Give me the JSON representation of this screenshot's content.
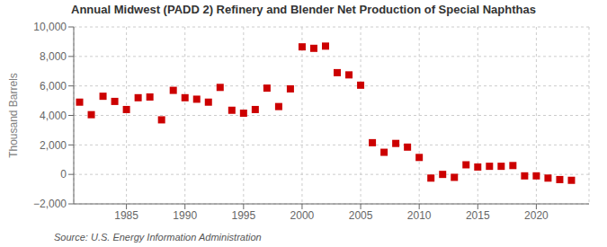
{
  "chart_data": {
    "type": "scatter",
    "title": "Annual Midwest (PADD 2) Refinery and Blender Net Production of Special Naphthas",
    "y_label": "Thousand Barrels",
    "annotations": [
      "Source: U.S. Energy Information Administration"
    ],
    "color": "#cc0000",
    "marker": "square",
    "grid": true,
    "x": [
      1981,
      1982,
      1983,
      1984,
      1985,
      1986,
      1987,
      1988,
      1989,
      1990,
      1991,
      1992,
      1993,
      1994,
      1995,
      1996,
      1997,
      1998,
      1999,
      2000,
      2001,
      2002,
      2003,
      2004,
      2005,
      2006,
      2007,
      2008,
      2009,
      2010,
      2011,
      2012,
      2013,
      2014,
      2015,
      2016,
      2017,
      2018,
      2019,
      2020,
      2021,
      2022,
      2023
    ],
    "values": [
      4900,
      4050,
      5300,
      4950,
      4400,
      5200,
      5250,
      3700,
      5700,
      5200,
      5100,
      4900,
      5900,
      4350,
      4150,
      4400,
      5850,
      4600,
      5800,
      8650,
      8550,
      8700,
      6900,
      6750,
      6050,
      2150,
      1500,
      2100,
      1850,
      1150,
      -250,
      0,
      -200,
      650,
      500,
      550,
      550,
      600,
      -100,
      -100,
      -250,
      -350,
      -400
    ],
    "xlim": [
      1980.5,
      2024.5
    ],
    "xticks": [
      1985,
      1990,
      1995,
      2000,
      2005,
      2010,
      2015,
      2020
    ],
    "ylim": [
      -2000,
      10000
    ],
    "yticks": [
      {
        "value": -2000,
        "label": "−2,000"
      },
      0,
      {
        "value": 2000,
        "label": "2,000"
      },
      {
        "value": 4000,
        "label": "4,000"
      },
      {
        "value": 6000,
        "label": "6,000"
      },
      {
        "value": 8000,
        "label": "8,000"
      },
      {
        "value": 10000,
        "label": "10,000"
      }
    ]
  }
}
